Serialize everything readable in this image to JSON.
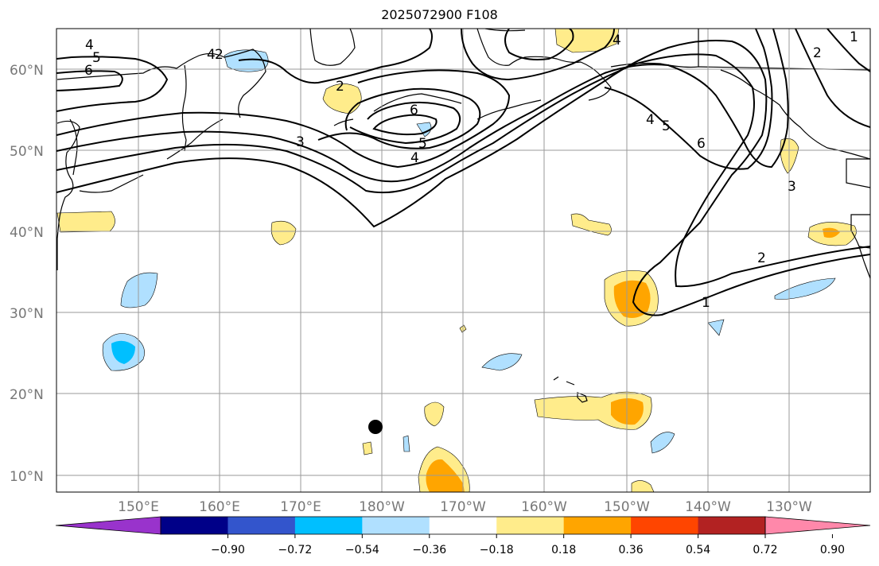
{
  "title": "2025072900 F108",
  "latitude_labels": [
    "60°N",
    "50°N",
    "40°N",
    "30°N",
    "20°N",
    "10°N"
  ],
  "longitude_labels": [
    "150°E",
    "160°E",
    "170°E",
    "180°W",
    "170°W",
    "160°W",
    "150°W",
    "140°W",
    "130°W"
  ],
  "contour_labels": [
    "1",
    "2",
    "3",
    "4",
    "5",
    "6"
  ],
  "colorbar": {
    "tick_labels": [
      "−0.90",
      "−0.72",
      "−0.54",
      "−0.36",
      "−0.18",
      "0.18",
      "0.36",
      "0.54",
      "0.72",
      "0.90"
    ],
    "colors": [
      "#9933cc",
      "#000088",
      "#3355cc",
      "#00bfff",
      "#b0e0ff",
      "#ffffff",
      "#ffec8b",
      "#ffa500",
      "#ff4500",
      "#b22222",
      "#ff88aa"
    ]
  },
  "storm_marker": "black-dot"
}
